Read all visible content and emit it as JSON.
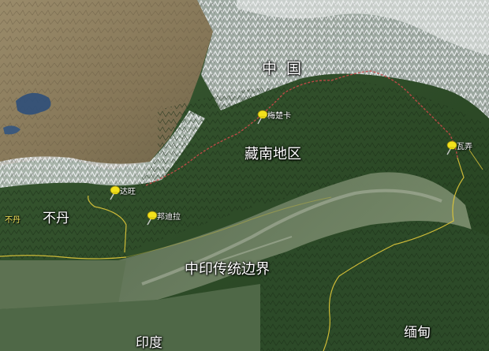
{
  "labels": {
    "china": "中 国",
    "south_tibet": "藏南地区",
    "bhutan": "不丹",
    "bhutan_small": "不丹",
    "traditional_border": "中印传统边界",
    "india": "印度",
    "myanmar": "缅甸"
  },
  "places": [
    {
      "key": "medog",
      "name": "梅楚卡"
    },
    {
      "key": "tawang",
      "name": "达旺"
    },
    {
      "key": "bomdila",
      "name": "邦迪拉"
    },
    {
      "key": "walong",
      "name": "瓦弄"
    }
  ],
  "colors": {
    "border_line": "#e0c83a",
    "claim_line": "#d04a4a",
    "pin": "#f2e21c",
    "plateau": "#8f8060",
    "forest": "#2f4d2b",
    "plain": "#6a7e62",
    "snow": "#e9ecef"
  }
}
